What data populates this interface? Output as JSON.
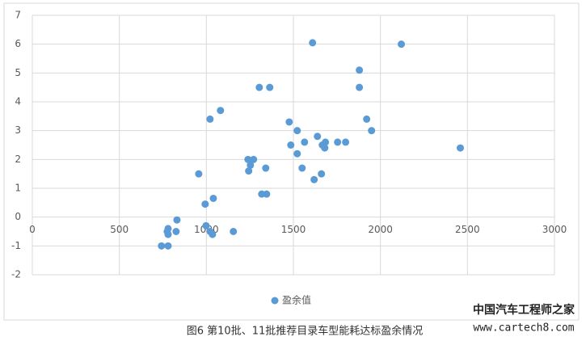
{
  "chart_data": {
    "type": "scatter",
    "series": [
      {
        "name": "盈余值",
        "color": "#5b9bd5",
        "x": [
          742,
          780,
          780,
          780,
          775,
          826,
          831,
          956,
          993,
          998,
          1021,
          1035,
          1021,
          1040,
          1081,
          1155,
          1239,
          1243,
          1253,
          1271,
          1304,
          1318,
          1346,
          1341,
          1364,
          1476,
          1485,
          1522,
          1522,
          1550,
          1564,
          1610,
          1619,
          1638,
          1661,
          1666,
          1684,
          1680,
          1754,
          1800,
          1879,
          1879,
          1921,
          1949,
          2120,
          2459
        ],
        "values": [
          -1,
          -1,
          -0.4,
          -0.6,
          -0.5,
          -0.5,
          -0.1,
          1.5,
          0.45,
          -0.3,
          -0.5,
          -0.6,
          3.4,
          0.65,
          3.7,
          -0.5,
          2,
          1.6,
          1.8,
          2,
          4.5,
          0.8,
          0.8,
          1.7,
          4.5,
          3.3,
          2.5,
          3,
          2.2,
          1.7,
          2.6,
          6.05,
          1.3,
          2.8,
          1.5,
          2.5,
          2.6,
          2.4,
          2.6,
          2.6,
          5.1,
          4.5,
          3.4,
          3,
          6,
          2.4
        ]
      }
    ],
    "xlim": [
      0,
      3000
    ],
    "xticks": [
      0,
      500,
      1000,
      1500,
      2000,
      2500,
      3000
    ],
    "ylim": [
      -2,
      7
    ],
    "yticks": [
      -2,
      -1,
      0,
      1,
      2,
      3,
      4,
      5,
      6,
      7
    ],
    "grid": true,
    "legend": "bottom"
  },
  "caption": "图6 第10批、11批推荐目录车型能耗达标盈余情况",
  "watermark": {
    "title": "中国汽车工程师之家",
    "url": "www.cartech8.com"
  }
}
